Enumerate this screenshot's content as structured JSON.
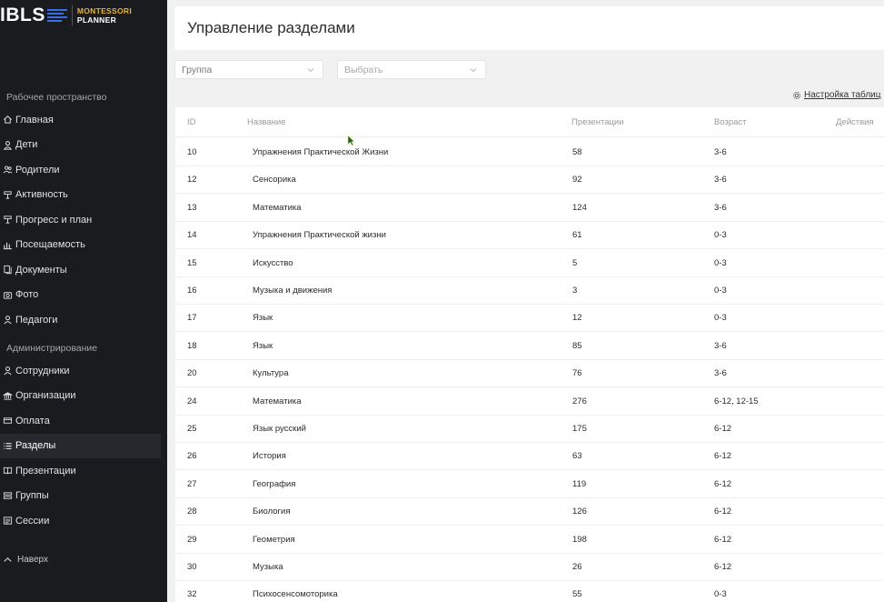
{
  "brand": {
    "name": "IBLS",
    "sub_line1": "MONTESSORI",
    "sub_line2": "PLANNER",
    "accent_blue": "#3a6ee8",
    "accent_gold": "#e7b43b"
  },
  "sidebar": {
    "workspace_label": "Рабочее пространство",
    "workspace_items": [
      {
        "label": "Главная",
        "icon": "home-icon"
      },
      {
        "label": "Дети",
        "icon": "user-icon"
      },
      {
        "label": "Родители",
        "icon": "users-icon"
      },
      {
        "label": "Активность",
        "icon": "activity-icon"
      },
      {
        "label": "Прогресс и план",
        "icon": "progress-icon"
      },
      {
        "label": "Посещаемость",
        "icon": "bar-chart-icon"
      },
      {
        "label": "Документы",
        "icon": "documents-icon"
      },
      {
        "label": "Фото",
        "icon": "camera-icon"
      },
      {
        "label": "Педагоги",
        "icon": "teacher-icon"
      }
    ],
    "admin_label": "Администрирование",
    "admin_items": [
      {
        "label": "Сотрудники",
        "icon": "staff-icon"
      },
      {
        "label": "Организации",
        "icon": "building-icon"
      },
      {
        "label": "Оплата",
        "icon": "card-icon"
      },
      {
        "label": "Разделы",
        "icon": "list-icon",
        "active": true
      },
      {
        "label": "Презентации",
        "icon": "book-icon"
      },
      {
        "label": "Группы",
        "icon": "groups-icon"
      },
      {
        "label": "Сессии",
        "icon": "sessions-icon"
      }
    ],
    "scroll_top_label": "Наверх"
  },
  "header": {
    "title": "Управление разделами"
  },
  "filters": {
    "group_value": "Группа",
    "select_placeholder": "Выбрать"
  },
  "toolbar": {
    "table_settings_label": "Настройка таблиц"
  },
  "table": {
    "columns": {
      "id": "ID",
      "name": "Название",
      "presentations": "Презентации",
      "age": "Возраст",
      "actions": "Действия"
    },
    "rows": [
      {
        "id": "10",
        "name": "Упражнения Практической Жизни",
        "presentations": "58",
        "age": "3-6"
      },
      {
        "id": "12",
        "name": "Сенсорика",
        "presentations": "92",
        "age": "3-6"
      },
      {
        "id": "13",
        "name": "Математика",
        "presentations": "124",
        "age": "3-6"
      },
      {
        "id": "14",
        "name": "Упражнения Практической жизни",
        "presentations": "61",
        "age": "0-3"
      },
      {
        "id": "15",
        "name": "Искусство",
        "presentations": "5",
        "age": "0-3"
      },
      {
        "id": "16",
        "name": "Музыка и движения",
        "presentations": "3",
        "age": "0-3"
      },
      {
        "id": "17",
        "name": "Язык",
        "presentations": "12",
        "age": "0-3"
      },
      {
        "id": "18",
        "name": "Язык",
        "presentations": "85",
        "age": "3-6"
      },
      {
        "id": "20",
        "name": "Культура",
        "presentations": "76",
        "age": "3-6"
      },
      {
        "id": "24",
        "name": "Математика",
        "presentations": "276",
        "age": "6-12, 12-15"
      },
      {
        "id": "25",
        "name": "Язык русский",
        "presentations": "175",
        "age": "6-12"
      },
      {
        "id": "26",
        "name": "История",
        "presentations": "63",
        "age": "6-12"
      },
      {
        "id": "27",
        "name": "География",
        "presentations": "119",
        "age": "6-12"
      },
      {
        "id": "28",
        "name": "Биология",
        "presentations": "126",
        "age": "6-12"
      },
      {
        "id": "29",
        "name": "Геометрия",
        "presentations": "198",
        "age": "6-12"
      },
      {
        "id": "30",
        "name": "Музыка",
        "presentations": "26",
        "age": "6-12"
      },
      {
        "id": "32",
        "name": "Психосенсомоторика",
        "presentations": "55",
        "age": "0-3"
      }
    ]
  }
}
